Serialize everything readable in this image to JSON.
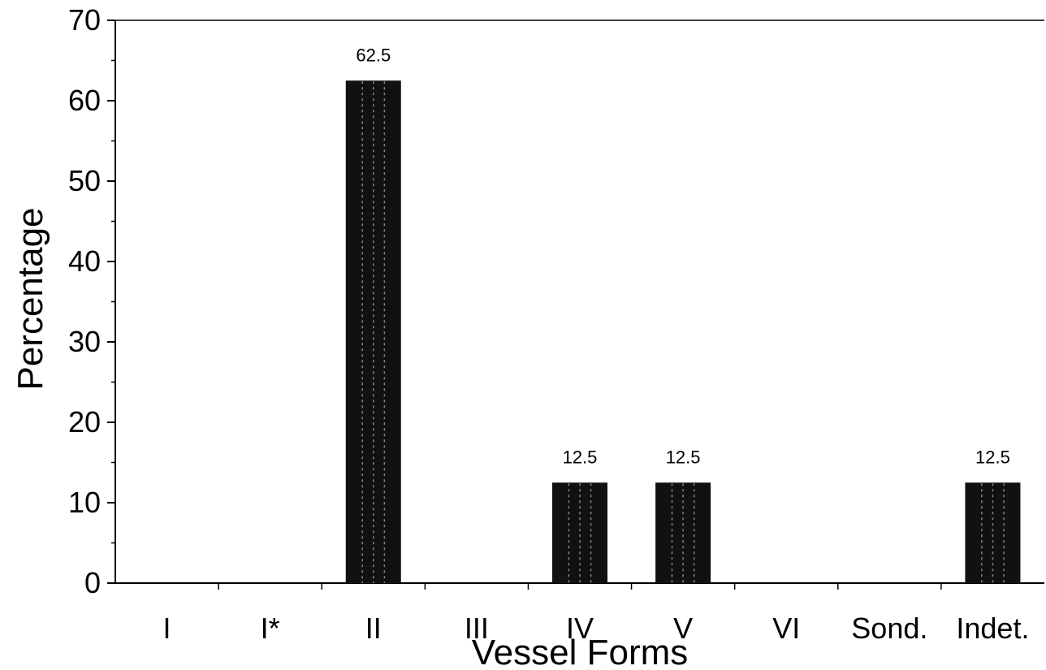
{
  "chart_data": {
    "type": "bar",
    "title": "",
    "xlabel": "Vessel Forms",
    "ylabel": "Percentage",
    "categories": [
      "I",
      "I*",
      "II",
      "III",
      "IV",
      "V",
      "VI",
      "Sond.",
      "Indet."
    ],
    "values": [
      0,
      0,
      62.5,
      0,
      12.5,
      12.5,
      0,
      0,
      12.5
    ],
    "data_labels": [
      "",
      "",
      "62.5",
      "",
      "12.5",
      "12.5",
      "",
      "",
      "12.5"
    ],
    "ylim": [
      0,
      70
    ],
    "yticks": [
      0,
      10,
      20,
      30,
      40,
      50,
      60,
      70
    ],
    "ytick_labels": [
      "0",
      "10",
      "20",
      "30",
      "40",
      "50",
      "60",
      "70"
    ],
    "grid": false,
    "legend": "none",
    "bar_color": "#111111"
  }
}
